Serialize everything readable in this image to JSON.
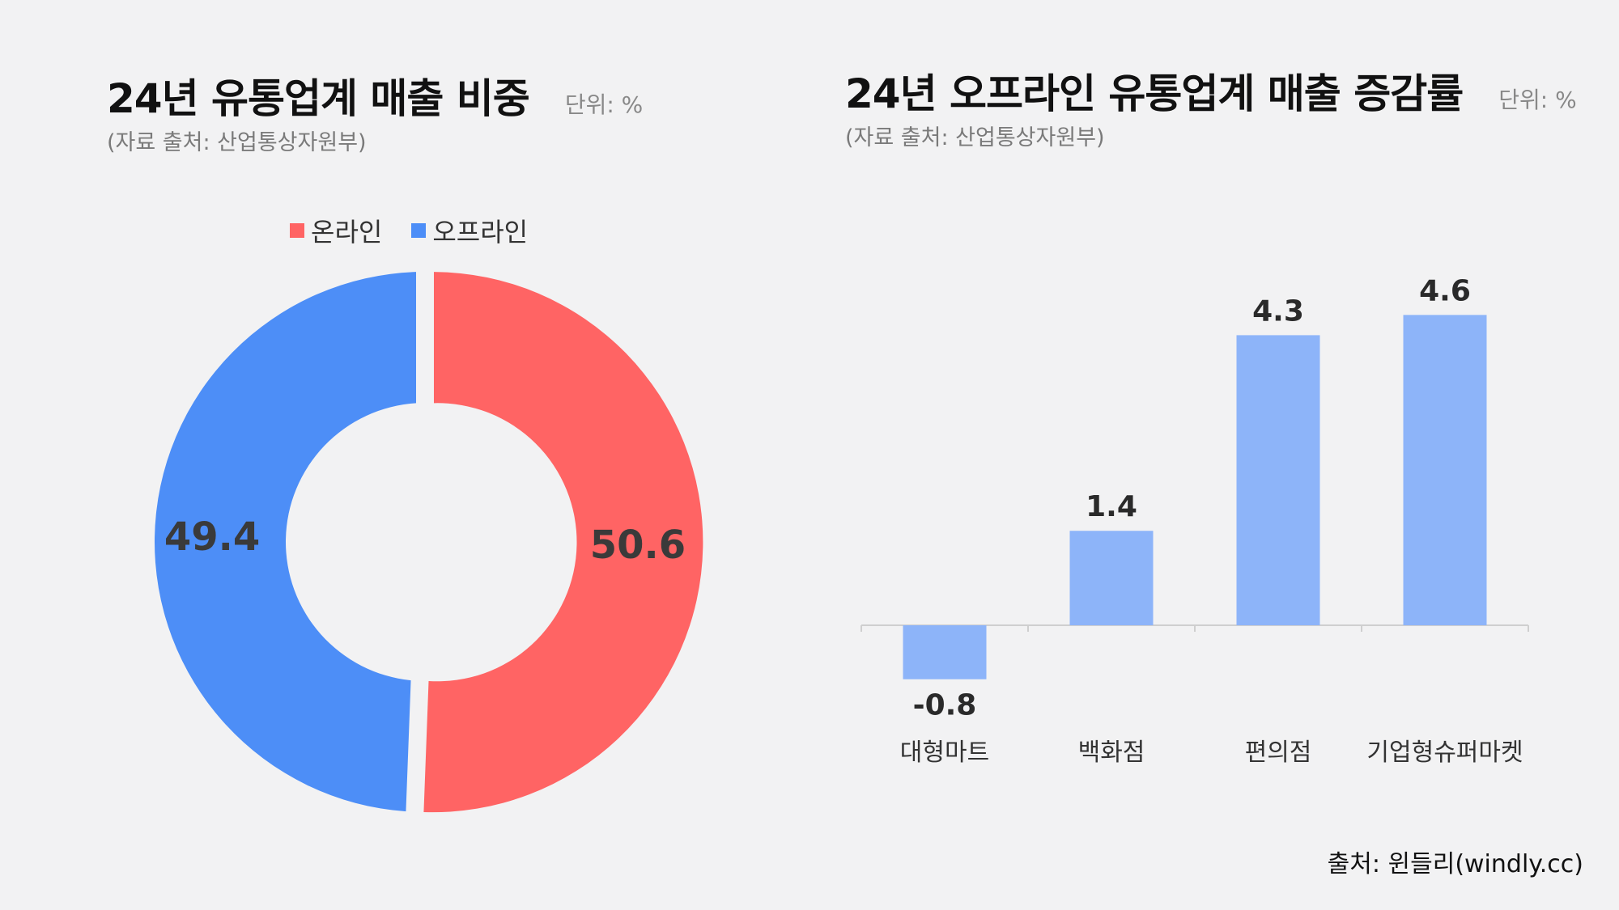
{
  "donut": {
    "title": "24년 유통업계 매출 비중",
    "unit": "단위: %",
    "source": "(자료 출처: 산업통상자원부)"
  },
  "bars": {
    "title": "24년 오프라인 유통업계 매출 증감률",
    "unit": "단위: %",
    "source": "(자료 출처: 산업통상자원부)"
  },
  "footer": {
    "credit": "출처: 윈들리(windly.cc)"
  },
  "colors": {
    "online": "#ff6464",
    "offline": "#4d8ef7",
    "bar": "#8db4f9",
    "axis": "#cfcfcf"
  },
  "chart_data": [
    {
      "type": "pie",
      "title": "24년 유통업계 매출 비중",
      "categories": [
        "온라인",
        "오프라인"
      ],
      "values": [
        50.6,
        49.4
      ],
      "legend_position": "top-center"
    },
    {
      "type": "bar",
      "title": "24년 오프라인 유통업계 매출 증감률",
      "categories": [
        "대형마트",
        "백화점",
        "편의점",
        "기업형슈퍼마켓"
      ],
      "values": [
        -0.8,
        1.4,
        4.3,
        4.6
      ],
      "xlabel": "",
      "ylabel": "",
      "ylim": [
        -1,
        5
      ],
      "grid": false
    }
  ]
}
